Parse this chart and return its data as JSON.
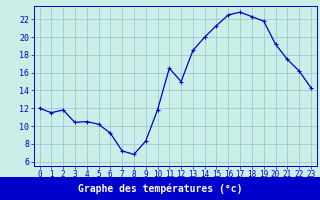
{
  "hours": [
    0,
    1,
    2,
    3,
    4,
    5,
    6,
    7,
    8,
    9,
    10,
    11,
    12,
    13,
    14,
    15,
    16,
    17,
    18,
    19,
    20,
    21,
    22,
    23
  ],
  "temps": [
    12.0,
    11.5,
    11.8,
    10.4,
    10.5,
    10.2,
    9.2,
    7.2,
    6.8,
    8.3,
    11.8,
    16.5,
    15.0,
    18.5,
    20.0,
    21.3,
    22.5,
    22.8,
    22.3,
    21.8,
    19.2,
    17.5,
    16.2,
    14.3
  ],
  "line_color": "#0000cc",
  "marker": "+",
  "bg_color": "#cceee8",
  "grid_color": "#99cccc",
  "xlabel": "Graphe des températures (°c)",
  "ylim": [
    5.5,
    23.5
  ],
  "yticks": [
    6,
    8,
    10,
    12,
    14,
    16,
    18,
    20,
    22
  ],
  "xlim": [
    -0.5,
    23.5
  ],
  "xticks": [
    0,
    1,
    2,
    3,
    4,
    5,
    6,
    7,
    8,
    9,
    10,
    11,
    12,
    13,
    14,
    15,
    16,
    17,
    18,
    19,
    20,
    21,
    22,
    23
  ],
  "tick_fontsize": 5.5,
  "ylabel_fontsize": 6.5
}
